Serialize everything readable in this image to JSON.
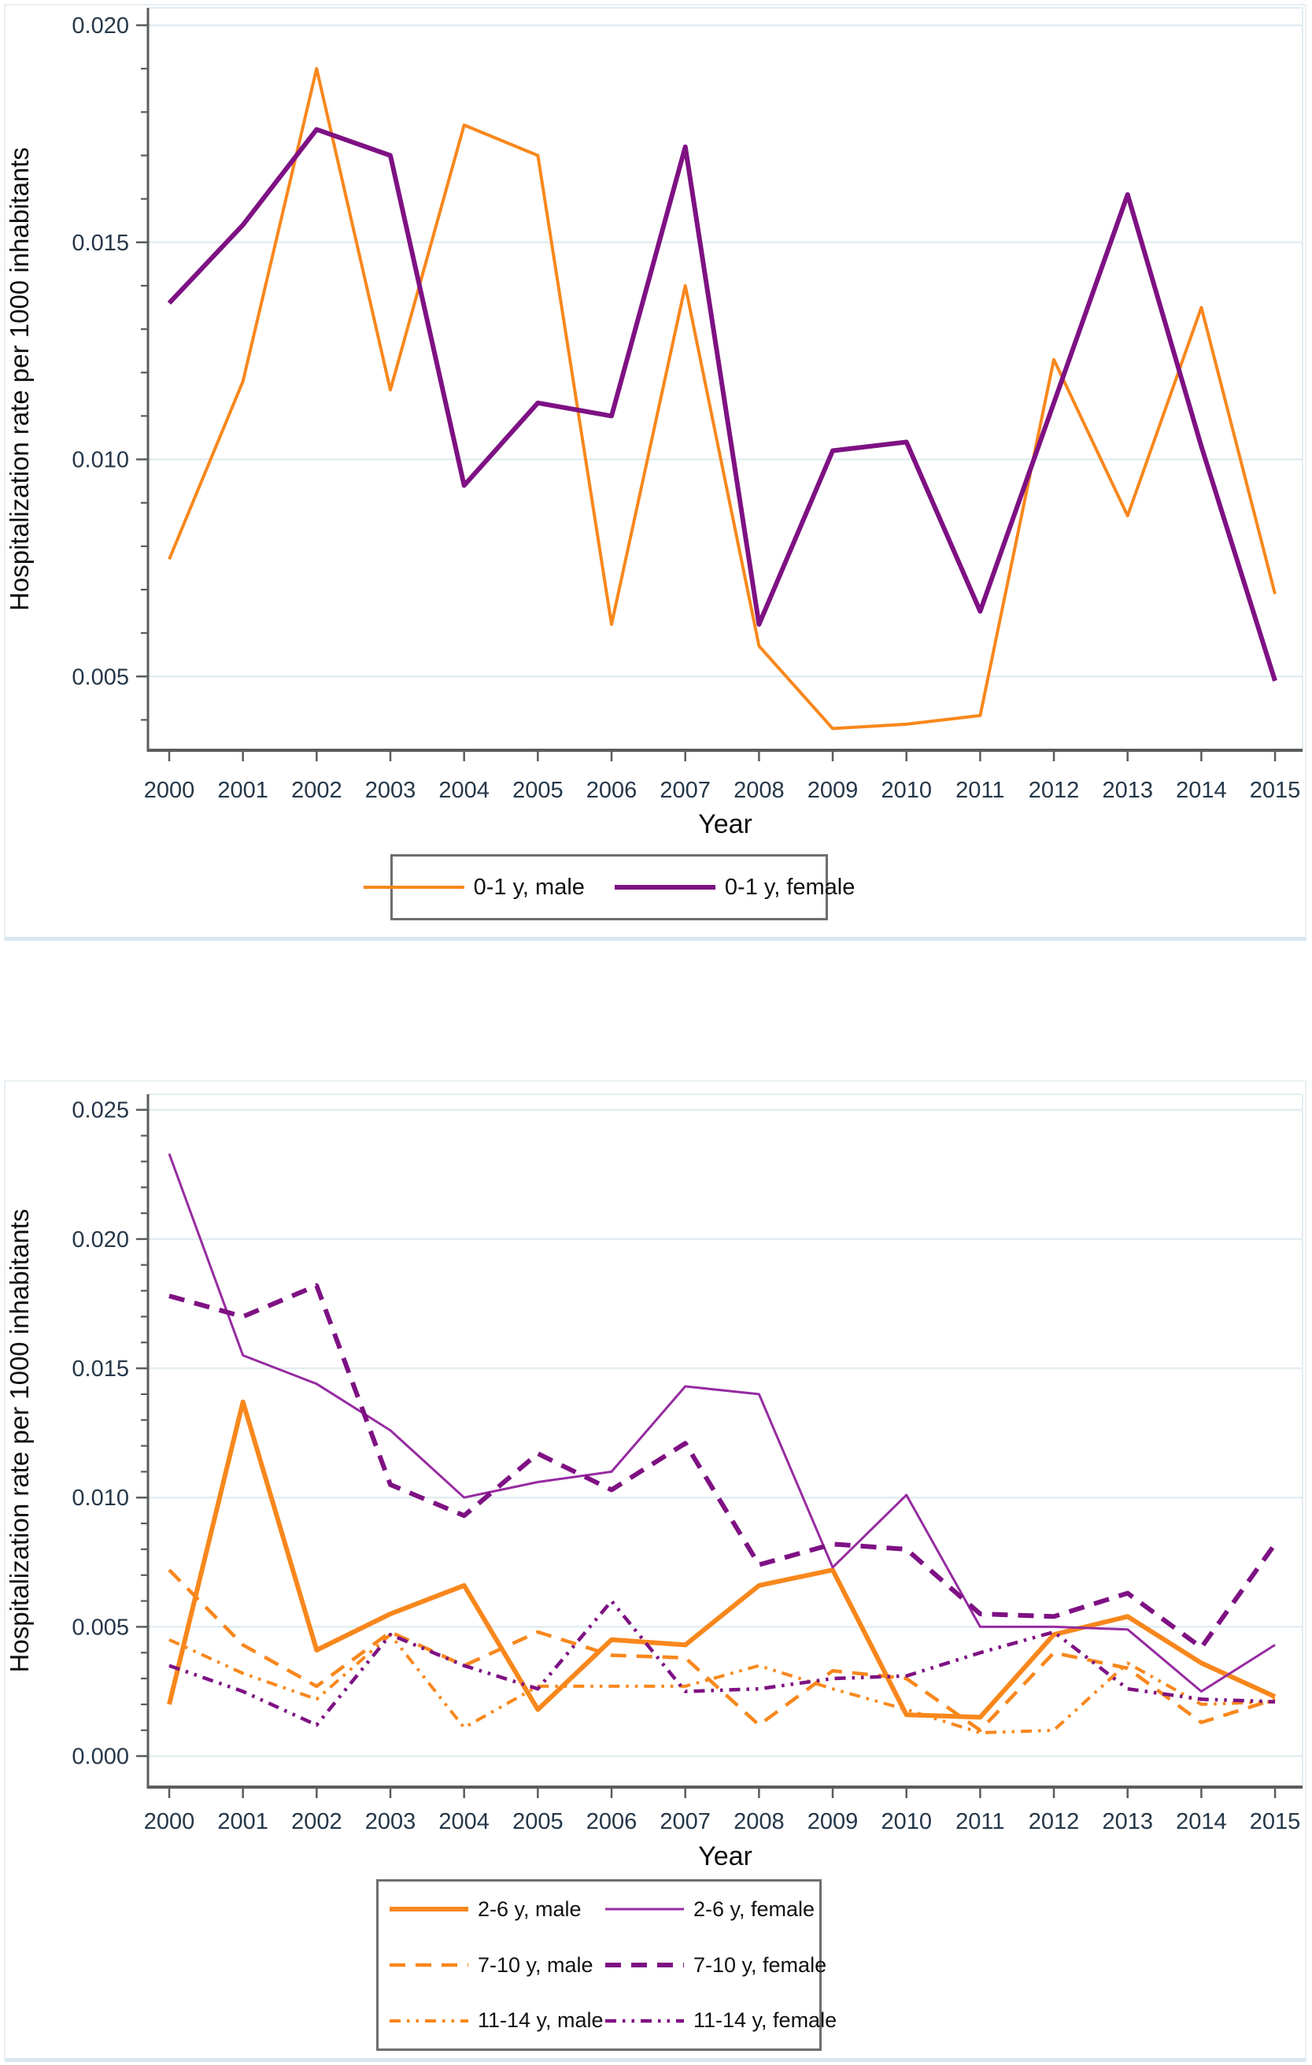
{
  "colors": {
    "male_orange": "#F8871C",
    "female_purple": "#7E1183",
    "female_purple_thin": "#962BA0",
    "gridline": "#E2EDF1",
    "axis": "#5A5C5E",
    "tick_label": "#253748",
    "axis_title": "#0E0E0E",
    "legend_text": "#111111"
  },
  "chart_data": [
    {
      "type": "line",
      "title": "",
      "ylabel": "Hospitalization rate per 1000 inhabitants",
      "xlabel": "Year",
      "grid": true,
      "legend_position": "bottom-center",
      "x": [
        2000,
        2001,
        2002,
        2003,
        2004,
        2005,
        2006,
        2007,
        2008,
        2009,
        2010,
        2011,
        2012,
        2013,
        2014,
        2015
      ],
      "ylim": [
        0.0033,
        0.0204
      ],
      "yticks": [
        0.005,
        0.01,
        0.015,
        0.02
      ],
      "ytick_labels": [
        "0.005",
        "0.010",
        "0.015",
        "0.020"
      ],
      "yminors": [
        0.004,
        0.006,
        0.007,
        0.008,
        0.009,
        0.011,
        0.012,
        0.013,
        0.014,
        0.016,
        0.017,
        0.018,
        0.019
      ],
      "series": [
        {
          "name": "0-1 y, male",
          "color_key": "male_orange",
          "style": "solid",
          "width": 4,
          "values": [
            0.0077,
            0.0118,
            0.019,
            0.0116,
            0.0177,
            0.017,
            0.0062,
            0.014,
            0.0057,
            0.0038,
            0.0039,
            0.0041,
            0.0123,
            0.0087,
            0.0135,
            0.0069
          ]
        },
        {
          "name": "0-1 y, female",
          "color_key": "female_purple",
          "style": "solid",
          "width": 6,
          "values": [
            0.0136,
            0.0154,
            0.0176,
            0.017,
            0.0094,
            0.0113,
            0.011,
            0.0172,
            0.0062,
            0.0102,
            0.0104,
            0.0065,
            0.0113,
            0.0161,
            0.0103,
            0.0049
          ]
        }
      ]
    },
    {
      "type": "line",
      "title": "",
      "ylabel": "Hospitalization rate per 1000 inhabitants",
      "xlabel": "Year",
      "grid": true,
      "legend_position": "bottom-center",
      "x": [
        2000,
        2001,
        2002,
        2003,
        2004,
        2005,
        2006,
        2007,
        2008,
        2009,
        2010,
        2011,
        2012,
        2013,
        2014,
        2015
      ],
      "ylim": [
        -0.0012,
        0.0256
      ],
      "yticks": [
        0.0,
        0.005,
        0.01,
        0.015,
        0.02,
        0.025
      ],
      "ytick_labels": [
        "0.000",
        "0.005",
        "0.010",
        "0.015",
        "0.020",
        "0.025"
      ],
      "yminors": [
        0.001,
        0.002,
        0.003,
        0.004,
        0.006,
        0.007,
        0.008,
        0.009,
        0.011,
        0.012,
        0.013,
        0.014,
        0.016,
        0.017,
        0.018,
        0.019,
        0.021,
        0.022,
        0.023,
        0.024
      ],
      "series": [
        {
          "name": "2-6 y, male",
          "color_key": "male_orange",
          "style": "solid",
          "width": 6,
          "values": [
            0.002,
            0.0137,
            0.0041,
            0.0055,
            0.0066,
            0.0018,
            0.0045,
            0.0043,
            0.0066,
            0.0072,
            0.0016,
            0.0015,
            0.0047,
            0.0054,
            0.0036,
            0.0023
          ]
        },
        {
          "name": "7-10 y, male",
          "color_key": "male_orange",
          "style": "longdash",
          "width": 4.5,
          "values": [
            0.0072,
            0.0043,
            0.0027,
            0.0048,
            0.0035,
            0.0048,
            0.0039,
            0.0038,
            0.0012,
            0.0033,
            0.003,
            0.001,
            0.004,
            0.0034,
            0.0013,
            0.0022
          ]
        },
        {
          "name": "11-14 y, male",
          "color_key": "male_orange",
          "style": "dashdotdot",
          "width": 4,
          "values": [
            0.0045,
            0.0032,
            0.0022,
            0.0047,
            0.0011,
            0.0027,
            0.0027,
            0.0027,
            0.0035,
            0.0026,
            0.0018,
            0.0009,
            0.001,
            0.0036,
            0.002,
            0.0021
          ]
        },
        {
          "name": "2-6 y, female",
          "color_key": "female_purple_thin",
          "style": "solid",
          "width": 3,
          "values": [
            0.0233,
            0.0155,
            0.0144,
            0.0126,
            0.01,
            0.0106,
            0.011,
            0.0143,
            0.014,
            0.0073,
            0.0101,
            0.005,
            0.005,
            0.0049,
            0.0025,
            0.0043
          ]
        },
        {
          "name": "7-10 y, female",
          "color_key": "female_purple",
          "style": "longdash",
          "width": 6,
          "values": [
            0.0178,
            0.017,
            0.0182,
            0.0105,
            0.0093,
            0.0117,
            0.0103,
            0.0121,
            0.0074,
            0.0082,
            0.008,
            0.0055,
            0.0054,
            0.0063,
            0.0042,
            0.0082
          ]
        },
        {
          "name": "11-14 y, female",
          "color_key": "female_purple",
          "style": "dashdotdot",
          "width": 4.5,
          "values": [
            0.0035,
            0.0025,
            0.0012,
            0.0047,
            0.0035,
            0.0026,
            0.006,
            0.0025,
            0.0026,
            0.003,
            0.0031,
            0.004,
            0.0048,
            0.0026,
            0.0022,
            0.0021
          ]
        }
      ]
    }
  ],
  "legend_top": {
    "items": [
      "0-1 y, male",
      "0-1 y, female"
    ]
  },
  "legend_bottom": {
    "rows": [
      [
        "2-6 y, male",
        "2-6 y, female"
      ],
      [
        "7-10 y, male",
        "7-10 y, female"
      ],
      [
        "11-14 y, male",
        "11-14 y, female"
      ]
    ]
  }
}
